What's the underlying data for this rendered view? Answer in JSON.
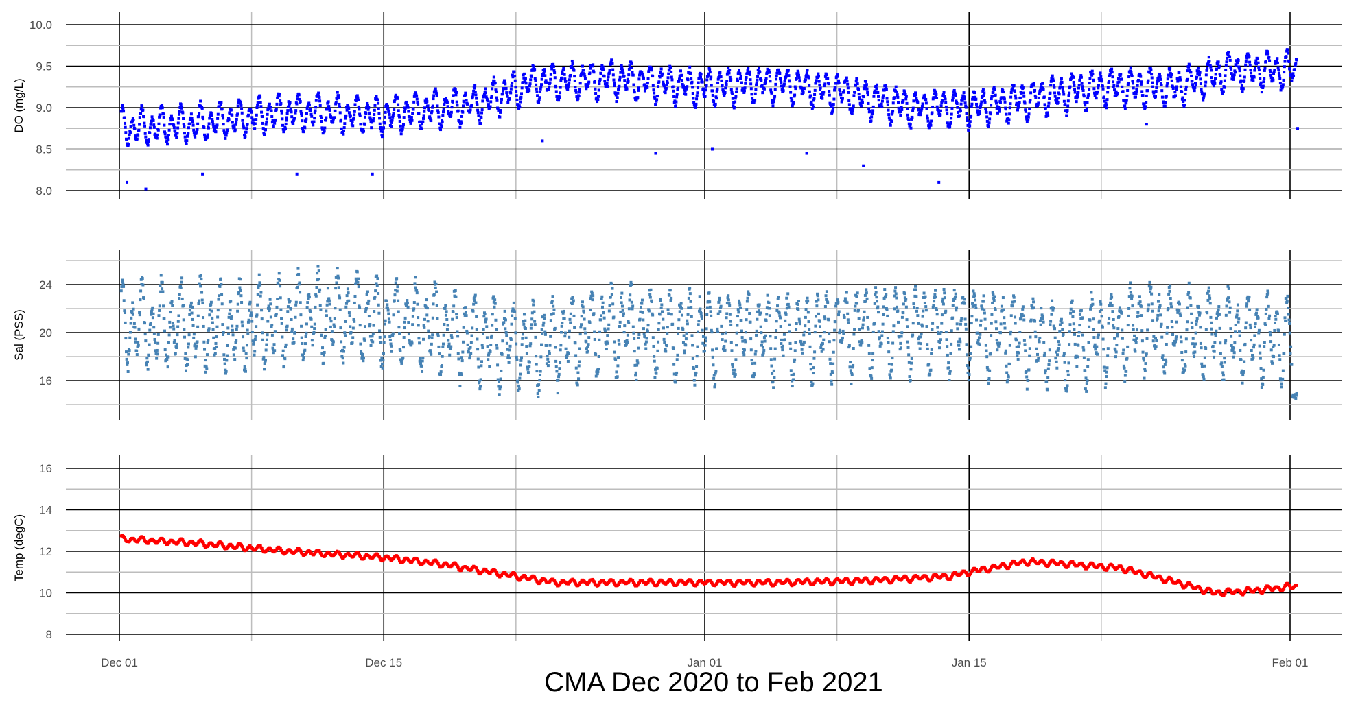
{
  "chart_data": {
    "type": "scatter",
    "title": "CMA Dec 2020 to Feb 2021",
    "x_range": [
      "2020-11-30",
      "2021-02-03"
    ],
    "x_ticks": [
      {
        "date": "2020-12-01",
        "label": "Dec 01"
      },
      {
        "date": "2020-12-15",
        "label": "Dec 15"
      },
      {
        "date": "2021-01-01",
        "label": "Jan 01"
      },
      {
        "date": "2021-01-15",
        "label": "Jan 15"
      },
      {
        "date": "2021-02-01",
        "label": "Feb 01"
      }
    ],
    "x_minor_ticks": [
      "2020-12-08",
      "2020-12-22",
      "2021-01-08",
      "2021-01-22"
    ],
    "grid": true,
    "panels": [
      {
        "ylabel": "DO (mg/L)",
        "color": "#0000ff",
        "ylim": [
          8.0,
          10.0
        ],
        "yticks": [
          "8.0",
          "8.5",
          "9.0",
          "9.5",
          "10.0"
        ],
        "baseline": [
          [
            "2020-12-01",
            8.75
          ],
          [
            "2020-12-05",
            8.8
          ],
          [
            "2020-12-10",
            8.95
          ],
          [
            "2020-12-15",
            8.9
          ],
          [
            "2020-12-20",
            9.05
          ],
          [
            "2020-12-23",
            9.3
          ],
          [
            "2020-12-27",
            9.35
          ],
          [
            "2021-01-01",
            9.25
          ],
          [
            "2021-01-05",
            9.3
          ],
          [
            "2021-01-08",
            9.2
          ],
          [
            "2021-01-12",
            9.0
          ],
          [
            "2021-01-15",
            9.0
          ],
          [
            "2021-01-18",
            9.1
          ],
          [
            "2021-01-22",
            9.25
          ],
          [
            "2021-01-26",
            9.25
          ],
          [
            "2021-01-29",
            9.45
          ],
          [
            "2021-02-01",
            9.45
          ]
        ],
        "amplitude": 0.22,
        "drops": [
          [
            "2020-12-01",
            8.1
          ],
          [
            "2020-12-02",
            8.02
          ],
          [
            "2020-12-05",
            8.2
          ],
          [
            "2020-12-10",
            8.2
          ],
          [
            "2020-12-14",
            8.2
          ],
          [
            "2020-12-23",
            8.6
          ],
          [
            "2020-12-29",
            8.45
          ],
          [
            "2021-01-01",
            8.5
          ],
          [
            "2021-01-06",
            8.45
          ],
          [
            "2021-01-09",
            8.3
          ],
          [
            "2021-01-13",
            8.1
          ],
          [
            "2021-01-24",
            8.8
          ],
          [
            "2021-02-01",
            8.75
          ]
        ]
      },
      {
        "ylabel": "Sal (PSS)",
        "color": "#4682b4",
        "ylim": [
          14.0,
          26.0
        ],
        "yticks": [
          "16",
          "20",
          "24"
        ],
        "baseline": [
          [
            "2020-12-01",
            20.5
          ],
          [
            "2020-12-08",
            20.5
          ],
          [
            "2020-12-12",
            21.5
          ],
          [
            "2020-12-17",
            20.5
          ],
          [
            "2020-12-20",
            19.5
          ],
          [
            "2020-12-23",
            18.8
          ],
          [
            "2020-12-27",
            20.5
          ],
          [
            "2021-01-01",
            20.0
          ],
          [
            "2021-01-06",
            19.8
          ],
          [
            "2021-01-10",
            20.5
          ],
          [
            "2021-01-15",
            20.5
          ],
          [
            "2021-01-20",
            19.0
          ],
          [
            "2021-01-24",
            20.5
          ],
          [
            "2021-01-28",
            20.0
          ],
          [
            "2021-02-01",
            19.5
          ]
        ],
        "amplitude": 3.6,
        "end_value": 14.7
      },
      {
        "ylabel": "Temp (degC)",
        "color": "#ff0000",
        "ylim": [
          8.0,
          16.0
        ],
        "yticks": [
          "8",
          "10",
          "12",
          "14",
          "16"
        ],
        "baseline": [
          [
            "2020-12-01",
            12.6
          ],
          [
            "2020-12-05",
            12.4
          ],
          [
            "2020-12-10",
            12.0
          ],
          [
            "2020-12-15",
            11.7
          ],
          [
            "2020-12-18",
            11.4
          ],
          [
            "2020-12-20",
            11.1
          ],
          [
            "2020-12-22",
            10.8
          ],
          [
            "2020-12-24",
            10.5
          ],
          [
            "2020-12-27",
            10.5
          ],
          [
            "2021-01-01",
            10.5
          ],
          [
            "2021-01-05",
            10.5
          ],
          [
            "2021-01-10",
            10.6
          ],
          [
            "2021-01-14",
            10.8
          ],
          [
            "2021-01-15",
            11.0
          ],
          [
            "2021-01-18",
            11.5
          ],
          [
            "2021-01-20",
            11.4
          ],
          [
            "2021-01-23",
            11.2
          ],
          [
            "2021-01-26",
            10.5
          ],
          [
            "2021-01-28",
            10.0
          ],
          [
            "2021-01-30",
            10.1
          ],
          [
            "2021-02-01",
            10.3
          ]
        ],
        "amplitude": 0.15
      }
    ]
  }
}
